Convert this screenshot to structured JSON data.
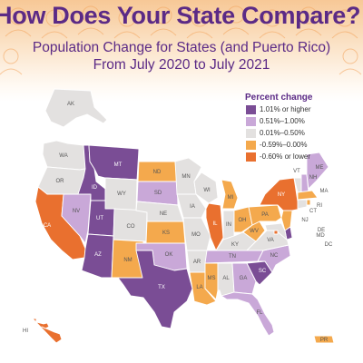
{
  "header": {
    "title": "How Does Your State Compare?",
    "subtitle_line1": "Population Change for States (and Puerto Rico)",
    "subtitle_line2": "From July 2020 to July 2021"
  },
  "legend": {
    "title": "Percent change",
    "items": [
      {
        "label": "1.01% or higher",
        "color": "#7a4d95"
      },
      {
        "label": "0.51%–1.00%",
        "color": "#c9a8d8"
      },
      {
        "label": "0.01%–0.50%",
        "color": "#e3e1e0"
      },
      {
        "label": "-0.59%–0.00%",
        "color": "#f4a94d"
      },
      {
        "label": "-0.60% or lower",
        "color": "#e9702f"
      }
    ]
  },
  "map": {
    "label_colors": {
      "dark": "#555555",
      "light": "#ffffff"
    },
    "states": [
      {
        "abbr": "WA",
        "category": 2
      },
      {
        "abbr": "OR",
        "category": 2
      },
      {
        "abbr": "CA",
        "category": 4
      },
      {
        "abbr": "NV",
        "category": 1
      },
      {
        "abbr": "ID",
        "category": 0
      },
      {
        "abbr": "MT",
        "category": 0
      },
      {
        "abbr": "WY",
        "category": 2
      },
      {
        "abbr": "UT",
        "category": 0
      },
      {
        "abbr": "AZ",
        "category": 0
      },
      {
        "abbr": "CO",
        "category": 2
      },
      {
        "abbr": "NM",
        "category": 3
      },
      {
        "abbr": "ND",
        "category": 3
      },
      {
        "abbr": "SD",
        "category": 1
      },
      {
        "abbr": "NE",
        "category": 2
      },
      {
        "abbr": "KS",
        "category": 3
      },
      {
        "abbr": "OK",
        "category": 1
      },
      {
        "abbr": "TX",
        "category": 0
      },
      {
        "abbr": "MN",
        "category": 2
      },
      {
        "abbr": "IA",
        "category": 2
      },
      {
        "abbr": "MO",
        "category": 2
      },
      {
        "abbr": "AR",
        "category": 2
      },
      {
        "abbr": "LA",
        "category": 3
      },
      {
        "abbr": "WI",
        "category": 2
      },
      {
        "abbr": "IL",
        "category": 4
      },
      {
        "abbr": "MI",
        "category": 3
      },
      {
        "abbr": "IN",
        "category": 2
      },
      {
        "abbr": "OH",
        "category": 3
      },
      {
        "abbr": "KY",
        "category": 2
      },
      {
        "abbr": "TN",
        "category": 1
      },
      {
        "abbr": "MS",
        "category": 3
      },
      {
        "abbr": "AL",
        "category": 2
      },
      {
        "abbr": "GA",
        "category": 1
      },
      {
        "abbr": "FL",
        "category": 1
      },
      {
        "abbr": "SC",
        "category": 0
      },
      {
        "abbr": "NC",
        "category": 1
      },
      {
        "abbr": "VA",
        "category": 2
      },
      {
        "abbr": "WV",
        "category": 3
      },
      {
        "abbr": "PA",
        "category": 3
      },
      {
        "abbr": "NY",
        "category": 4
      },
      {
        "abbr": "VT",
        "category": 2
      },
      {
        "abbr": "NH",
        "category": 1
      },
      {
        "abbr": "ME",
        "category": 1
      },
      {
        "abbr": "MA",
        "category": 3
      },
      {
        "abbr": "CT",
        "category": 2
      },
      {
        "abbr": "RI",
        "category": 3
      },
      {
        "abbr": "NJ",
        "category": 3
      },
      {
        "abbr": "DE",
        "category": 0
      },
      {
        "abbr": "MD",
        "category": 2
      },
      {
        "abbr": "DC",
        "category": 4
      },
      {
        "abbr": "AK",
        "category": 2
      },
      {
        "abbr": "HI",
        "category": 4
      },
      {
        "abbr": "PR",
        "category": 3
      }
    ]
  }
}
